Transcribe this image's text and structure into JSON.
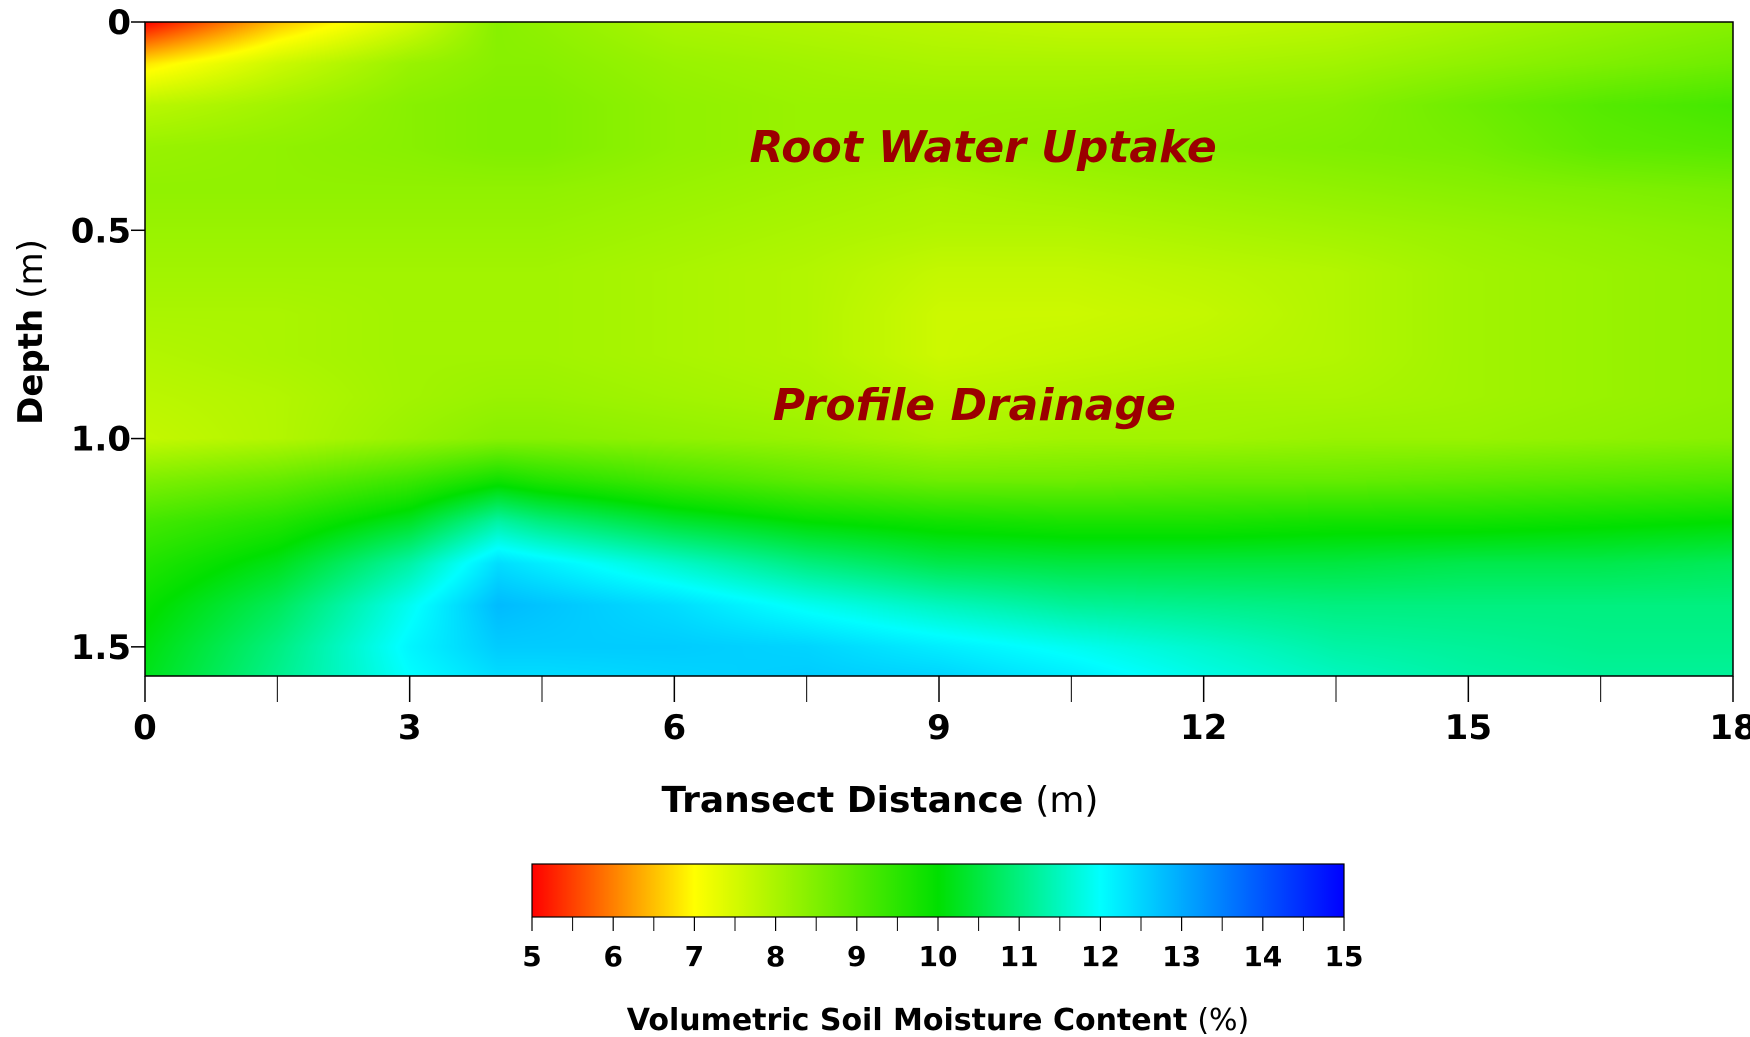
{
  "chart_data": {
    "type": "heatmap",
    "x_label": {
      "bold": "Transect Distance",
      "unit": "(m)"
    },
    "y_label": {
      "bold": "Depth",
      "unit": "(m)"
    },
    "xlim": [
      0,
      18
    ],
    "ylim": [
      0,
      1.57
    ],
    "y_inverted": true,
    "x_ticks": [
      0,
      3,
      6,
      9,
      12,
      15,
      18
    ],
    "x_minor_ticks": [
      1.5,
      4.5,
      7.5,
      10.5,
      13.5,
      16.5
    ],
    "x_tick_labels": [
      "0",
      "3",
      "6",
      "9",
      "12",
      "15",
      "18"
    ],
    "y_ticks": [
      0,
      0.5,
      1.0,
      1.5
    ],
    "y_tick_labels": [
      "0",
      "0.5",
      "1.0",
      "1.5"
    ],
    "colorbar": {
      "min": 5,
      "max": 15,
      "ticks": [
        5,
        6,
        7,
        8,
        9,
        10,
        11,
        12,
        13,
        14,
        15
      ],
      "tick_labels": [
        "5",
        "6",
        "7",
        "8",
        "9",
        "10",
        "11",
        "12",
        "13",
        "14",
        "15"
      ],
      "label": {
        "bold": "Volumetric Soil Moisture Content",
        "unit": "(%)"
      },
      "colormap": [
        [
          5,
          "#ff0000"
        ],
        [
          7,
          "#ffff00"
        ],
        [
          10,
          "#00e000"
        ],
        [
          12,
          "#00ffff"
        ],
        [
          13.5,
          "#0080ff"
        ],
        [
          15,
          "#0000ff"
        ]
      ]
    },
    "annotations": [
      {
        "text": "Root Water Uptake",
        "x": 9.5,
        "y": 0.3
      },
      {
        "text": "Profile Drainage",
        "x": 9.4,
        "y": 0.92
      }
    ],
    "grid_x": [
      0,
      1.5,
      3,
      4,
      4.5,
      6,
      7.5,
      9,
      10.5,
      12,
      13.5,
      15,
      16.5,
      18
    ],
    "grid_y": [
      0,
      0.1,
      0.2,
      0.3,
      0.4,
      0.5,
      0.6,
      0.7,
      0.8,
      0.9,
      1.0,
      1.1,
      1.2,
      1.3,
      1.4,
      1.5,
      1.57
    ],
    "values": [
      [
        5.0,
        6.5,
        7.5,
        8.4,
        8.3,
        8.0,
        7.9,
        7.8,
        7.7,
        7.7,
        7.8,
        8.0,
        8.2,
        8.4
      ],
      [
        6.8,
        7.6,
        8.2,
        8.4,
        8.4,
        8.2,
        8.1,
        8.0,
        8.0,
        8.0,
        8.1,
        8.3,
        8.5,
        8.7
      ],
      [
        7.8,
        8.1,
        8.4,
        8.5,
        8.5,
        8.3,
        8.2,
        8.2,
        8.2,
        8.3,
        8.4,
        8.7,
        9.0,
        9.2
      ],
      [
        8.2,
        8.3,
        8.4,
        8.5,
        8.5,
        8.3,
        8.2,
        8.2,
        8.3,
        8.4,
        8.5,
        8.6,
        8.9,
        9.0
      ],
      [
        8.3,
        8.3,
        8.3,
        8.3,
        8.3,
        8.2,
        8.1,
        8.0,
        8.1,
        8.2,
        8.3,
        8.4,
        8.5,
        8.6
      ],
      [
        8.2,
        8.2,
        8.2,
        8.2,
        8.2,
        8.1,
        8.0,
        7.9,
        7.9,
        8.0,
        8.1,
        8.2,
        8.3,
        8.4
      ],
      [
        8.1,
        8.1,
        8.1,
        8.1,
        8.1,
        8.0,
        7.9,
        7.7,
        7.7,
        7.8,
        7.9,
        8.1,
        8.2,
        8.3
      ],
      [
        8.0,
        8.0,
        8.1,
        8.1,
        8.1,
        8.0,
        7.9,
        7.6,
        7.6,
        7.7,
        7.9,
        8.1,
        8.2,
        8.3
      ],
      [
        7.9,
        8.0,
        8.1,
        8.1,
        8.1,
        8.0,
        7.9,
        7.6,
        7.7,
        7.8,
        7.9,
        8.1,
        8.2,
        8.3
      ],
      [
        7.8,
        7.9,
        8.1,
        8.2,
        8.2,
        8.1,
        8.0,
        7.8,
        7.9,
        8.0,
        8.0,
        8.1,
        8.2,
        8.3
      ],
      [
        7.7,
        7.9,
        8.2,
        8.4,
        8.4,
        8.3,
        8.2,
        8.0,
        8.1,
        8.1,
        8.2,
        8.2,
        8.3,
        8.4
      ],
      [
        8.5,
        8.8,
        9.3,
        9.8,
        9.6,
        9.2,
        8.9,
        8.7,
        8.7,
        8.8,
        8.8,
        8.9,
        9.0,
        9.1
      ],
      [
        9.2,
        9.6,
        10.3,
        11.3,
        11.0,
        10.4,
        10.0,
        9.8,
        9.7,
        9.7,
        9.8,
        9.8,
        9.9,
        10.0
      ],
      [
        9.6,
        10.2,
        11.3,
        12.4,
        12.2,
        11.6,
        11.0,
        10.6,
        10.5,
        10.5,
        10.5,
        10.6,
        10.6,
        10.7
      ],
      [
        9.9,
        10.7,
        11.9,
        12.8,
        12.7,
        12.4,
        11.9,
        11.5,
        11.2,
        11.1,
        11.0,
        11.0,
        11.0,
        11.0
      ],
      [
        10.1,
        11.0,
        12.1,
        12.6,
        12.6,
        12.6,
        12.5,
        12.2,
        11.9,
        11.6,
        11.3,
        11.2,
        11.1,
        11.1
      ],
      [
        10.2,
        11.1,
        12.0,
        12.4,
        12.4,
        12.5,
        12.6,
        12.5,
        12.2,
        11.8,
        11.5,
        11.3,
        11.2,
        11.2
      ]
    ]
  }
}
